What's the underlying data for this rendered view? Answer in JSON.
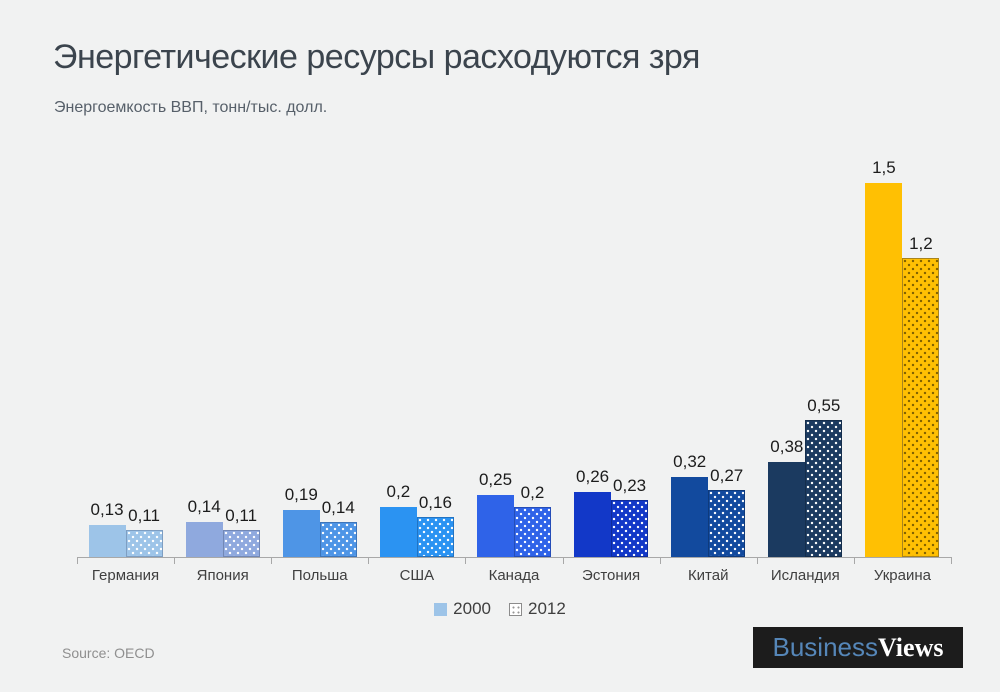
{
  "page": {
    "background": "#F1F2F2"
  },
  "title": "Энергетические ресурсы расходуются зря",
  "subtitle": "Энергоемкость ВВП, тонн/тыс. долл.",
  "source": "Source: OECD",
  "logo": {
    "text_blue": "Business",
    "text_white": "Views",
    "background": "#1C1C1C",
    "blue_color": "#5586B8",
    "white_color": "#FFFFFF"
  },
  "legend": {
    "items": [
      {
        "label": "2000",
        "style": "solid-lightblue"
      },
      {
        "label": "2012",
        "style": "dotted-white"
      }
    ]
  },
  "chart_data": {
    "type": "bar",
    "title": "Энергетические ресурсы расходуются зря",
    "subtitle": "Энергоемкость ВВП, тонн/тыс. долл.",
    "categories": [
      "Германия",
      "Япония",
      "Польша",
      "США",
      "Канада",
      "Эстония",
      "Китай",
      "Исландия",
      "Украина"
    ],
    "series": [
      {
        "name": "2000",
        "style": "solid",
        "values": [
          0.13,
          0.14,
          0.19,
          0.2,
          0.25,
          0.26,
          0.32,
          0.38,
          1.5
        ],
        "labels": [
          "0,13",
          "0,14",
          "0,19",
          "0,2",
          "0,25",
          "0,26",
          "0,32",
          "0,38",
          "1,5"
        ]
      },
      {
        "name": "2012",
        "style": "dotted",
        "values": [
          0.11,
          0.11,
          0.14,
          0.16,
          0.2,
          0.23,
          0.27,
          0.55,
          1.2
        ],
        "labels": [
          "0,11",
          "0,11",
          "0,14",
          "0,16",
          "0,2",
          "0,23",
          "0,27",
          "0,55",
          "1,2"
        ]
      }
    ],
    "bar_colors": [
      {
        "solid": "#9DC4E8",
        "border": "#7E9EC2",
        "dot": "#FFFFFF"
      },
      {
        "solid": "#8FA9DE",
        "border": "#7288B6",
        "dot": "#FFFFFF"
      },
      {
        "solid": "#4E95E6",
        "border": "#3D75BA",
        "dot": "#FFFFFF"
      },
      {
        "solid": "#2B93F2",
        "border": "#2273C2",
        "dot": "#FFFFFF"
      },
      {
        "solid": "#2F63E8",
        "border": "#254DB8",
        "dot": "#FFFFFF"
      },
      {
        "solid": "#1238C8",
        "border": "#0E2C9C",
        "dot": "#FFFFFF"
      },
      {
        "solid": "#124A9E",
        "border": "#0E3A7C",
        "dot": "#FFFFFF"
      },
      {
        "solid": "#1B3A60",
        "border": "#152E4C",
        "dot": "#FFFFFF"
      },
      {
        "solid": "#FFC003",
        "border": "#A9841C",
        "dot": "#7F6000"
      }
    ],
    "ylim": [
      0,
      1.5
    ],
    "grid": false,
    "legend_position": "bottom",
    "axis_color": "#A8A8A8",
    "decimal_separator": "comma"
  }
}
